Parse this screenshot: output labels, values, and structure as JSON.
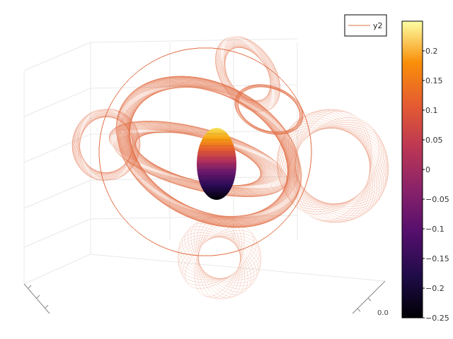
{
  "chart_data": {
    "type": "surface",
    "title": "",
    "legend": {
      "placement": "top-right",
      "entries": [
        "y2"
      ]
    },
    "series": [
      {
        "name": "y2",
        "kind": "3d-wireframe-curve",
        "color": "#e26f46"
      }
    ],
    "surface": {
      "kind": "ellipsoid",
      "colormap": "inferno",
      "zlim": [
        -0.25,
        0.25
      ]
    },
    "colorbar": {
      "colormap": "inferno",
      "range": [
        -0.25,
        0.25
      ],
      "ticks": [
        -0.25,
        -0.2,
        -0.15,
        -0.1,
        -0.05,
        0,
        0.05,
        0.1,
        0.15,
        0.2
      ],
      "tick_labels": [
        "−0.25",
        "−0.2",
        "−0.15",
        "−0.1",
        "−0.05",
        "0",
        "0.05",
        "0.1",
        "0.15",
        "0.2"
      ]
    },
    "axes": {
      "x_tick_label": "0.0",
      "grid": true
    }
  },
  "colors": {
    "curve": "#e26f46",
    "axis": "#888888",
    "grid": "#e8e8e8"
  }
}
